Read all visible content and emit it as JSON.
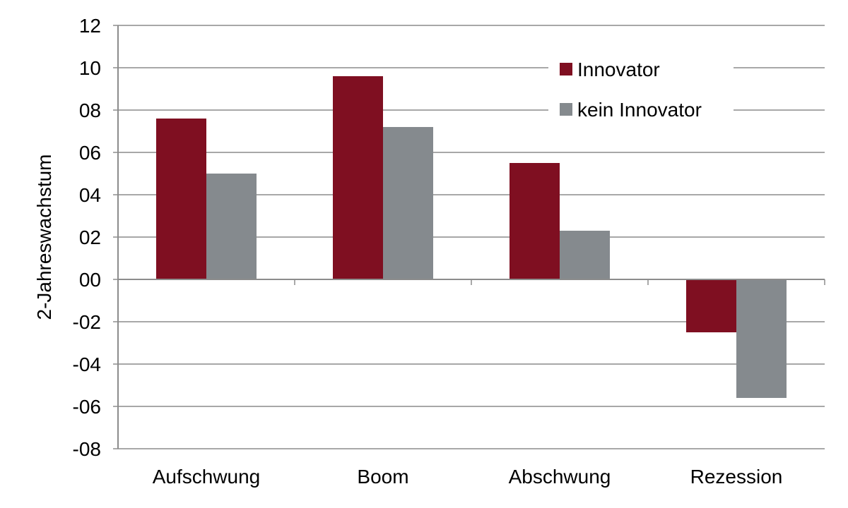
{
  "chart_data": {
    "type": "bar",
    "title": "",
    "xlabel": "",
    "ylabel": "2-Jahreswachstum",
    "categories": [
      "Aufschwung",
      "Boom",
      "Abschwung",
      "Rezession"
    ],
    "series": [
      {
        "name": "Innovator",
        "color": "#7f0f21",
        "values": [
          7.6,
          9.6,
          5.5,
          -2.5
        ]
      },
      {
        "name": "kein Innovator",
        "color": "#858a8e",
        "values": [
          5.0,
          7.2,
          2.3,
          -5.6
        ]
      }
    ],
    "ylim": [
      -8,
      12
    ],
    "yticks": [
      12,
      10,
      8,
      6,
      4,
      2,
      0,
      -2,
      -4,
      -6,
      -8
    ],
    "ytick_labels": [
      "12",
      "10",
      "08",
      "06",
      "04",
      "02",
      "00",
      "-02",
      "-04",
      "-06",
      "-08"
    ],
    "grid": true,
    "legend_position": "top-right"
  }
}
